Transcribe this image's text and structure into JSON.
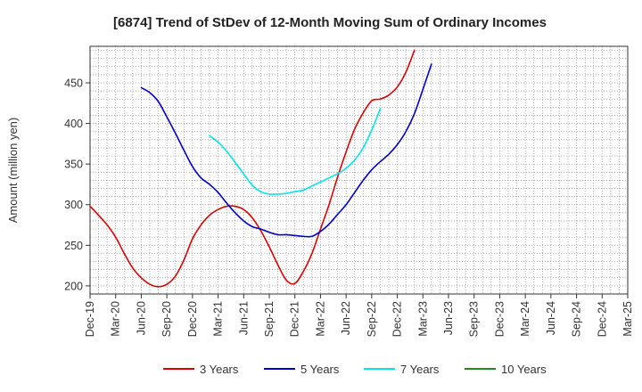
{
  "chart_data": {
    "type": "line",
    "title": "[6874]  Trend of StDev of 12-Month Moving Sum of Ordinary Incomes",
    "ylabel": "Amount (million yen)",
    "xlabel": "",
    "ylim": [
      190,
      495
    ],
    "yticks": [
      200,
      250,
      300,
      350,
      400,
      450
    ],
    "grid": true,
    "legend_position": "bottom",
    "x_tick_labels": [
      "Dec-19",
      "Mar-20",
      "Jun-20",
      "Sep-20",
      "Dec-20",
      "Mar-21",
      "Jun-21",
      "Sep-21",
      "Dec-21",
      "Mar-22",
      "Jun-22",
      "Sep-22",
      "Dec-22",
      "Mar-23",
      "Jun-23",
      "Sep-23",
      "Dec-23",
      "Mar-24",
      "Jun-24",
      "Sep-24",
      "Dec-24",
      "Mar-25"
    ],
    "x_months_total": 21,
    "series": [
      {
        "name": "3 Years",
        "color": "#dd0000",
        "points": [
          [
            0,
            298
          ],
          [
            1,
            287
          ],
          [
            2,
            275
          ],
          [
            3,
            260
          ],
          [
            4,
            240
          ],
          [
            5,
            222
          ],
          [
            6,
            210
          ],
          [
            7,
            202
          ],
          [
            8,
            199
          ],
          [
            9,
            202
          ],
          [
            10,
            212
          ],
          [
            11,
            232
          ],
          [
            12,
            258
          ],
          [
            13,
            275
          ],
          [
            14,
            287
          ],
          [
            15,
            294
          ],
          [
            16,
            298
          ],
          [
            17,
            298
          ],
          [
            18,
            294
          ],
          [
            19,
            284
          ],
          [
            20,
            268
          ],
          [
            21,
            248
          ],
          [
            22,
            226
          ],
          [
            23,
            207
          ],
          [
            24,
            203
          ],
          [
            25,
            218
          ],
          [
            26,
            240
          ],
          [
            27,
            270
          ],
          [
            28,
            300
          ],
          [
            29,
            334
          ],
          [
            30,
            365
          ],
          [
            31,
            393
          ],
          [
            32,
            413
          ],
          [
            33,
            428
          ],
          [
            34,
            430
          ],
          [
            35,
            435
          ],
          [
            36,
            445
          ],
          [
            37,
            463
          ],
          [
            38,
            490
          ]
        ]
      },
      {
        "name": "5 Years",
        "color": "#0000cc",
        "points": [
          [
            6,
            444
          ],
          [
            7,
            438
          ],
          [
            8,
            427
          ],
          [
            9,
            408
          ],
          [
            10,
            388
          ],
          [
            11,
            367
          ],
          [
            12,
            347
          ],
          [
            13,
            333
          ],
          [
            14,
            325
          ],
          [
            15,
            315
          ],
          [
            16,
            302
          ],
          [
            17,
            290
          ],
          [
            18,
            280
          ],
          [
            19,
            273
          ],
          [
            20,
            270
          ],
          [
            21,
            266
          ],
          [
            22,
            263
          ],
          [
            23,
            263
          ],
          [
            24,
            262
          ],
          [
            25,
            261
          ],
          [
            26,
            261
          ],
          [
            27,
            267
          ],
          [
            28,
            276
          ],
          [
            29,
            288
          ],
          [
            30,
            300
          ],
          [
            31,
            315
          ],
          [
            32,
            330
          ],
          [
            33,
            343
          ],
          [
            34,
            353
          ],
          [
            35,
            362
          ],
          [
            36,
            374
          ],
          [
            37,
            390
          ],
          [
            38,
            412
          ],
          [
            39,
            442
          ],
          [
            40,
            473
          ]
        ]
      },
      {
        "name": "7 Years",
        "color": "#00e5ee",
        "points": [
          [
            14,
            385
          ],
          [
            15,
            377
          ],
          [
            16,
            366
          ],
          [
            17,
            352
          ],
          [
            18,
            338
          ],
          [
            19,
            324
          ],
          [
            20,
            316
          ],
          [
            21,
            313
          ],
          [
            22,
            313
          ],
          [
            23,
            314
          ],
          [
            24,
            316
          ],
          [
            25,
            318
          ],
          [
            26,
            323
          ],
          [
            27,
            328
          ],
          [
            28,
            333
          ],
          [
            29,
            338
          ],
          [
            30,
            345
          ],
          [
            31,
            355
          ],
          [
            32,
            370
          ],
          [
            33,
            392
          ],
          [
            34,
            418
          ]
        ]
      },
      {
        "name": "10 Years",
        "color": "#228b22",
        "points": []
      }
    ]
  }
}
